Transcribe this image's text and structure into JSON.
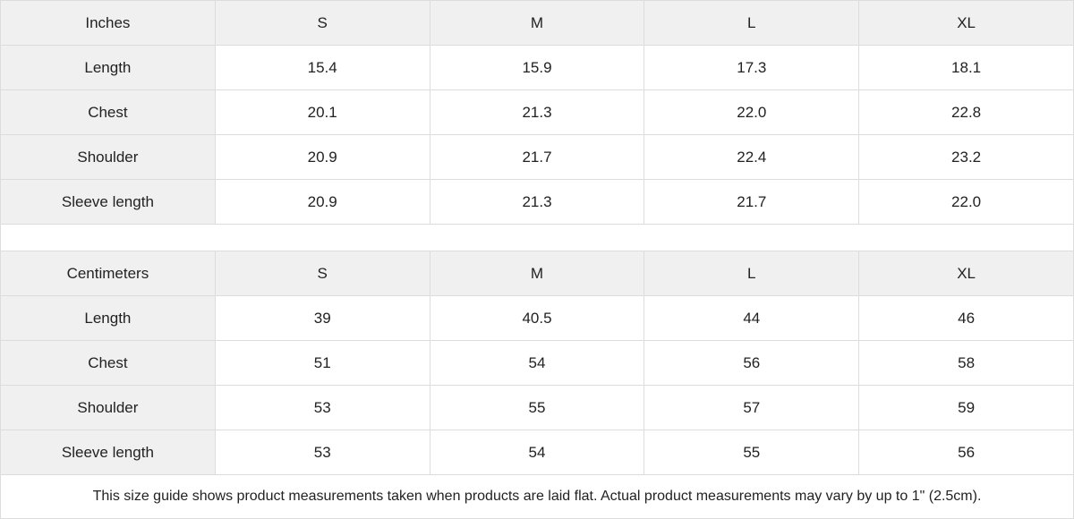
{
  "inches": {
    "header": [
      "Inches",
      "S",
      "M",
      "L",
      "XL"
    ],
    "rows": [
      [
        "Length",
        "15.4",
        "15.9",
        "17.3",
        "18.1"
      ],
      [
        "Chest",
        "20.1",
        "21.3",
        "22.0",
        "22.8"
      ],
      [
        "Shoulder",
        "20.9",
        "21.7",
        "22.4",
        "23.2"
      ],
      [
        "Sleeve length",
        "20.9",
        "21.3",
        "21.7",
        "22.0"
      ]
    ]
  },
  "centimeters": {
    "header": [
      "Centimeters",
      "S",
      "M",
      "L",
      "XL"
    ],
    "rows": [
      [
        "Length",
        "39",
        "40.5",
        "44",
        "46"
      ],
      [
        "Chest",
        "51",
        "54",
        "56",
        "58"
      ],
      [
        "Shoulder",
        "53",
        "55",
        "57",
        "59"
      ],
      [
        "Sleeve length",
        "53",
        "54",
        "55",
        "56"
      ]
    ]
  },
  "note": "This size guide shows product measurements taken when products are laid flat.  Actual product measurements may vary by up to 1\" (2.5cm)."
}
